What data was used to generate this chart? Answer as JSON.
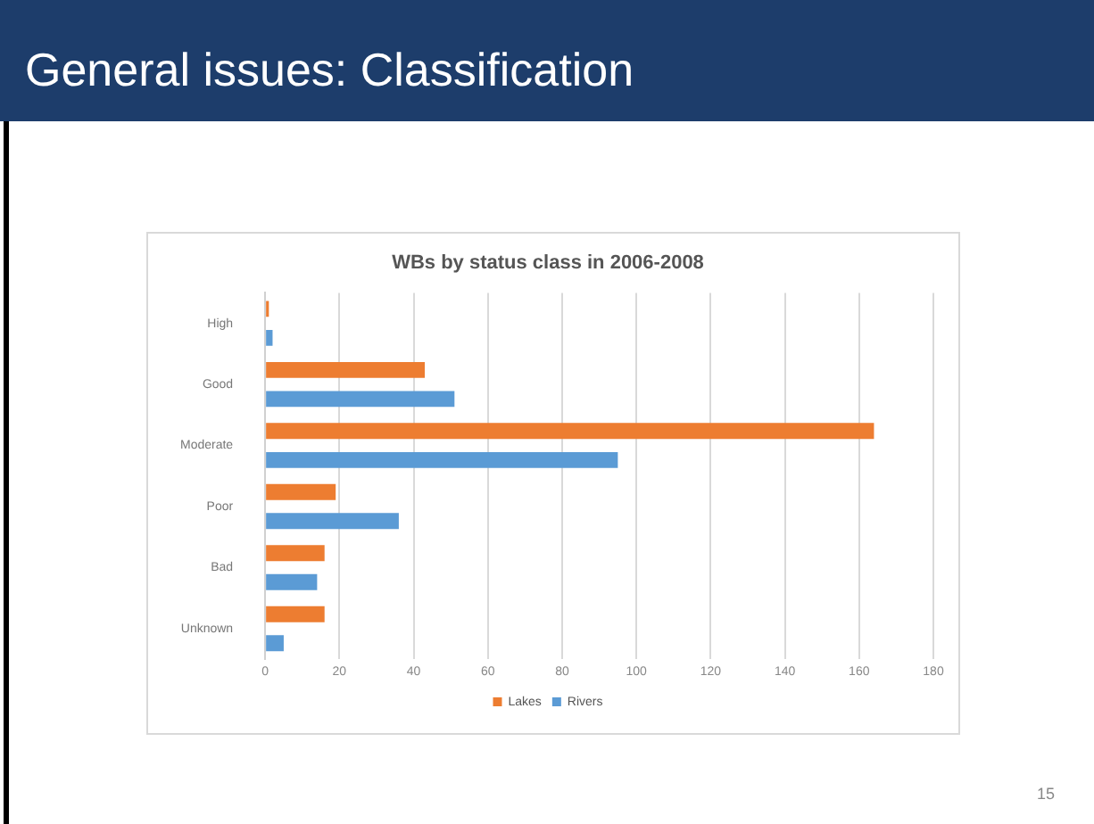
{
  "chart_data": {
    "type": "bar",
    "orientation": "horizontal",
    "title": "General issues: Classification",
    "subtitle": "WBs by status class in 2006-2008",
    "categories": [
      "High",
      "Good",
      "Moderate",
      "Poor",
      "Bad",
      "Unknown"
    ],
    "series": [
      {
        "name": "Lakes",
        "color": "#ed7d31",
        "values": [
          1,
          43,
          164,
          19,
          16,
          16
        ]
      },
      {
        "name": "Rivers",
        "color": "#5b9bd5",
        "values": [
          2,
          51,
          95,
          36,
          14,
          5
        ]
      }
    ],
    "xlim": [
      0,
      180
    ],
    "xticks": [
      0,
      20,
      40,
      60,
      80,
      100,
      120,
      140,
      160,
      180
    ],
    "grid": "x",
    "legend": "bottom",
    "annotations": [
      "15"
    ]
  }
}
